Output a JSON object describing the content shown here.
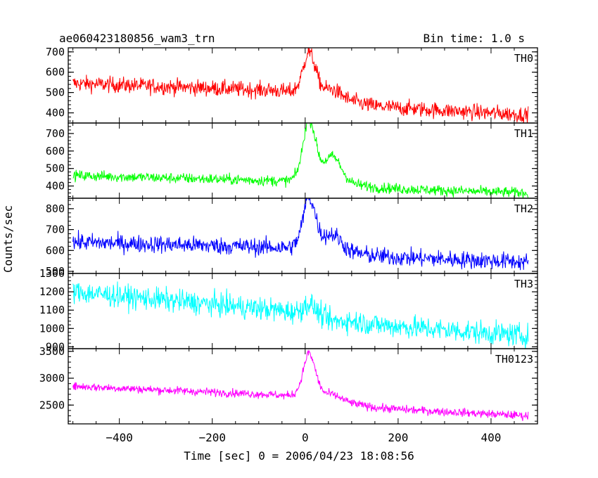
{
  "chart_data": {
    "type": "line",
    "title": "ae060423180856_wam3_trn",
    "bin_time_label": "Bin time: 1.0 s",
    "xlabel": "Time [sec] 0 = 2006/04/23 18:08:56",
    "ylabel": "Counts/sec",
    "xlim": [
      -510,
      500
    ],
    "xticks": [
      -400,
      -200,
      0,
      200,
      400
    ],
    "xtick_labels": [
      "−400",
      "−200",
      "0",
      "200",
      "400"
    ],
    "data_range": [
      -500,
      480
    ],
    "peak_time": 10,
    "panels": [
      {
        "name": "TH0",
        "color": "#ff0000",
        "ylim": [
          350,
          720
        ],
        "yticks": [
          400,
          500,
          600,
          700
        ],
        "ytick_labels": [
          "400",
          "500",
          "600",
          "700"
        ],
        "trend_start": 545,
        "trend_end": 390,
        "trend_mid": 510,
        "noise": 28,
        "peak": 690,
        "secondary_peak": 540
      },
      {
        "name": "TH1",
        "color": "#00ff00",
        "ylim": [
          330,
          760
        ],
        "yticks": [
          400,
          500,
          600,
          700
        ],
        "ytick_labels": [
          "400",
          "500",
          "600",
          "700"
        ],
        "trend_start": 460,
        "trend_end": 360,
        "trend_mid": 430,
        "noise": 22,
        "peak": 740,
        "secondary_peak": 560
      },
      {
        "name": "TH2",
        "color": "#0000ff",
        "ylim": [
          490,
          850
        ],
        "yticks": [
          500,
          600,
          700,
          800
        ],
        "ytick_labels": [
          "500",
          "600",
          "700",
          "800"
        ],
        "trend_start": 640,
        "trend_end": 545,
        "trend_mid": 615,
        "noise": 30,
        "peak": 830,
        "secondary_peak": 680
      },
      {
        "name": "TH3",
        "color": "#00ffff",
        "ylim": [
          890,
          1300
        ],
        "yticks": [
          900,
          1000,
          1100,
          1200,
          1300
        ],
        "ytick_labels": [
          "900",
          "1000",
          "1100",
          "1200",
          "1300"
        ],
        "trend_start": 1200,
        "trend_end": 960,
        "trend_mid": 1100,
        "noise": 45,
        "peak": 1150,
        "secondary_peak": 1080
      },
      {
        "name": "TH0123",
        "color": "#ff00ff",
        "ylim": [
          2150,
          3550
        ],
        "yticks": [
          2500,
          3000,
          3500
        ],
        "ytick_labels": [
          "2500",
          "3000",
          "3500"
        ],
        "trend_start": 2850,
        "trend_end": 2300,
        "trend_mid": 2690,
        "noise": 55,
        "peak": 3400,
        "secondary_peak": 2760
      }
    ]
  }
}
